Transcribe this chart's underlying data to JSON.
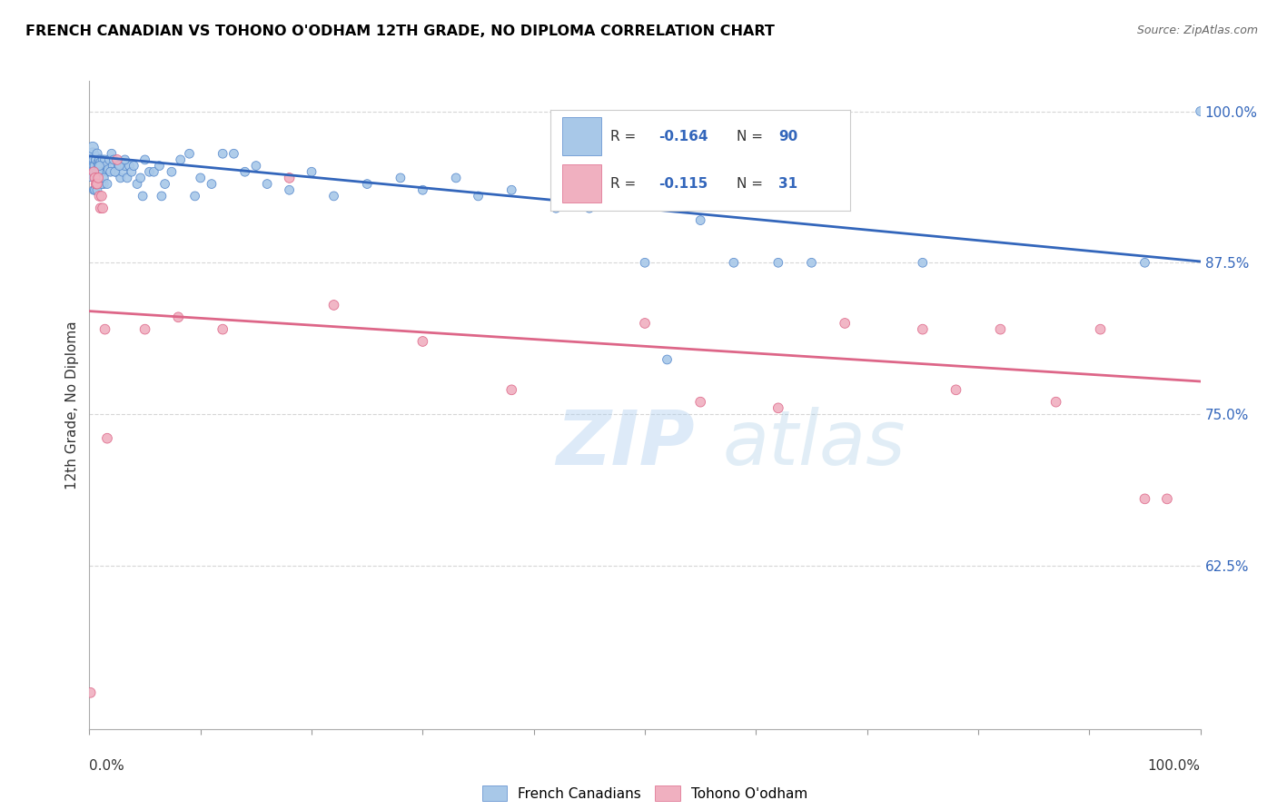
{
  "title": "FRENCH CANADIAN VS TOHONO O'ODHAM 12TH GRADE, NO DIPLOMA CORRELATION CHART",
  "source": "Source: ZipAtlas.com",
  "ylabel": "12th Grade, No Diploma",
  "ytick_labels": [
    "62.5%",
    "75.0%",
    "87.5%",
    "100.0%"
  ],
  "ytick_values": [
    0.625,
    0.75,
    0.875,
    1.0
  ],
  "legend_blue_label": "French Canadians",
  "legend_pink_label": "Tohono O'odham",
  "blue_color": "#A8C8E8",
  "blue_edge_color": "#5588CC",
  "blue_line_color": "#3366BB",
  "pink_color": "#F0B0C0",
  "pink_edge_color": "#DD6688",
  "pink_line_color": "#DD6688",
  "watermark_zip": "ZIP",
  "watermark_atlas": "atlas",
  "blue_r_val": "-0.164",
  "blue_n_val": "90",
  "pink_r_val": "-0.115",
  "pink_n_val": "31",
  "blue_scatter_x": [
    0.001,
    0.002,
    0.003,
    0.003,
    0.003,
    0.004,
    0.004,
    0.005,
    0.005,
    0.006,
    0.006,
    0.007,
    0.007,
    0.008,
    0.008,
    0.009,
    0.009,
    0.01,
    0.01,
    0.011,
    0.012,
    0.013,
    0.014,
    0.015,
    0.016,
    0.017,
    0.018,
    0.02,
    0.021,
    0.022,
    0.024,
    0.026,
    0.028,
    0.03,
    0.032,
    0.034,
    0.036,
    0.038,
    0.04,
    0.043,
    0.046,
    0.05,
    0.054,
    0.058,
    0.063,
    0.068,
    0.074,
    0.082,
    0.09,
    0.1,
    0.11,
    0.12,
    0.13,
    0.14,
    0.15,
    0.16,
    0.18,
    0.2,
    0.22,
    0.25,
    0.28,
    0.3,
    0.33,
    0.35,
    0.38,
    0.42,
    0.45,
    0.5,
    0.52,
    0.55,
    0.58,
    0.62,
    0.65,
    0.75,
    0.95,
    1.0,
    0.004,
    0.005,
    0.007,
    0.009,
    0.011,
    0.013,
    0.016,
    0.019,
    0.023,
    0.027,
    0.032,
    0.048,
    0.065,
    0.095
  ],
  "blue_scatter_y": [
    0.955,
    0.96,
    0.965,
    0.965,
    0.97,
    0.96,
    0.955,
    0.955,
    0.95,
    0.96,
    0.96,
    0.965,
    0.95,
    0.958,
    0.955,
    0.96,
    0.952,
    0.958,
    0.955,
    0.95,
    0.96,
    0.94,
    0.96,
    0.955,
    0.95,
    0.952,
    0.96,
    0.965,
    0.955,
    0.96,
    0.95,
    0.955,
    0.945,
    0.95,
    0.955,
    0.945,
    0.955,
    0.95,
    0.955,
    0.94,
    0.945,
    0.96,
    0.95,
    0.95,
    0.955,
    0.94,
    0.95,
    0.96,
    0.965,
    0.945,
    0.94,
    0.965,
    0.965,
    0.95,
    0.955,
    0.94,
    0.935,
    0.95,
    0.93,
    0.94,
    0.945,
    0.935,
    0.945,
    0.93,
    0.935,
    0.92,
    0.92,
    0.875,
    0.795,
    0.91,
    0.875,
    0.875,
    0.875,
    0.875,
    0.875,
    1.0,
    0.935,
    0.935,
    0.935,
    0.955,
    0.94,
    0.945,
    0.94,
    0.95,
    0.95,
    0.955,
    0.96,
    0.93,
    0.93,
    0.93
  ],
  "blue_scatter_sizes": [
    600,
    80,
    80,
    80,
    80,
    60,
    60,
    60,
    60,
    55,
    55,
    55,
    55,
    50,
    50,
    50,
    50,
    50,
    50,
    50,
    50,
    50,
    50,
    50,
    50,
    50,
    50,
    50,
    50,
    50,
    50,
    50,
    50,
    50,
    50,
    50,
    50,
    50,
    50,
    50,
    50,
    50,
    50,
    50,
    50,
    50,
    50,
    50,
    50,
    50,
    50,
    50,
    50,
    50,
    50,
    50,
    50,
    50,
    50,
    50,
    50,
    50,
    50,
    50,
    50,
    50,
    50,
    50,
    50,
    50,
    50,
    50,
    50,
    50,
    50,
    50,
    50,
    50,
    50,
    50,
    50,
    50,
    50,
    50,
    50,
    50,
    50,
    50,
    50,
    50
  ],
  "pink_scatter_x": [
    0.001,
    0.004,
    0.005,
    0.006,
    0.007,
    0.008,
    0.009,
    0.01,
    0.011,
    0.012,
    0.014,
    0.016,
    0.025,
    0.05,
    0.08,
    0.12,
    0.18,
    0.22,
    0.3,
    0.38,
    0.5,
    0.55,
    0.62,
    0.68,
    0.75,
    0.78,
    0.82,
    0.87,
    0.91,
    0.95,
    0.97
  ],
  "pink_scatter_y": [
    0.52,
    0.95,
    0.945,
    0.94,
    0.94,
    0.945,
    0.93,
    0.92,
    0.93,
    0.92,
    0.82,
    0.73,
    0.96,
    0.82,
    0.83,
    0.82,
    0.945,
    0.84,
    0.81,
    0.77,
    0.825,
    0.76,
    0.755,
    0.825,
    0.82,
    0.77,
    0.82,
    0.76,
    0.82,
    0.68,
    0.68
  ],
  "pink_scatter_sizes": [
    60,
    60,
    60,
    60,
    60,
    60,
    60,
    60,
    60,
    60,
    60,
    60,
    60,
    60,
    60,
    60,
    60,
    60,
    60,
    60,
    60,
    60,
    60,
    60,
    60,
    60,
    60,
    60,
    60,
    60,
    60
  ],
  "blue_line_y_start": 0.963,
  "blue_line_y_end": 0.876,
  "pink_line_y_start": 0.835,
  "pink_line_y_end": 0.777,
  "xlim": [
    0.0,
    1.0
  ],
  "ylim": [
    0.49,
    1.025
  ],
  "background_color": "#ffffff",
  "grid_color": "#cccccc",
  "spine_color": "#aaaaaa",
  "tick_color": "#999999"
}
